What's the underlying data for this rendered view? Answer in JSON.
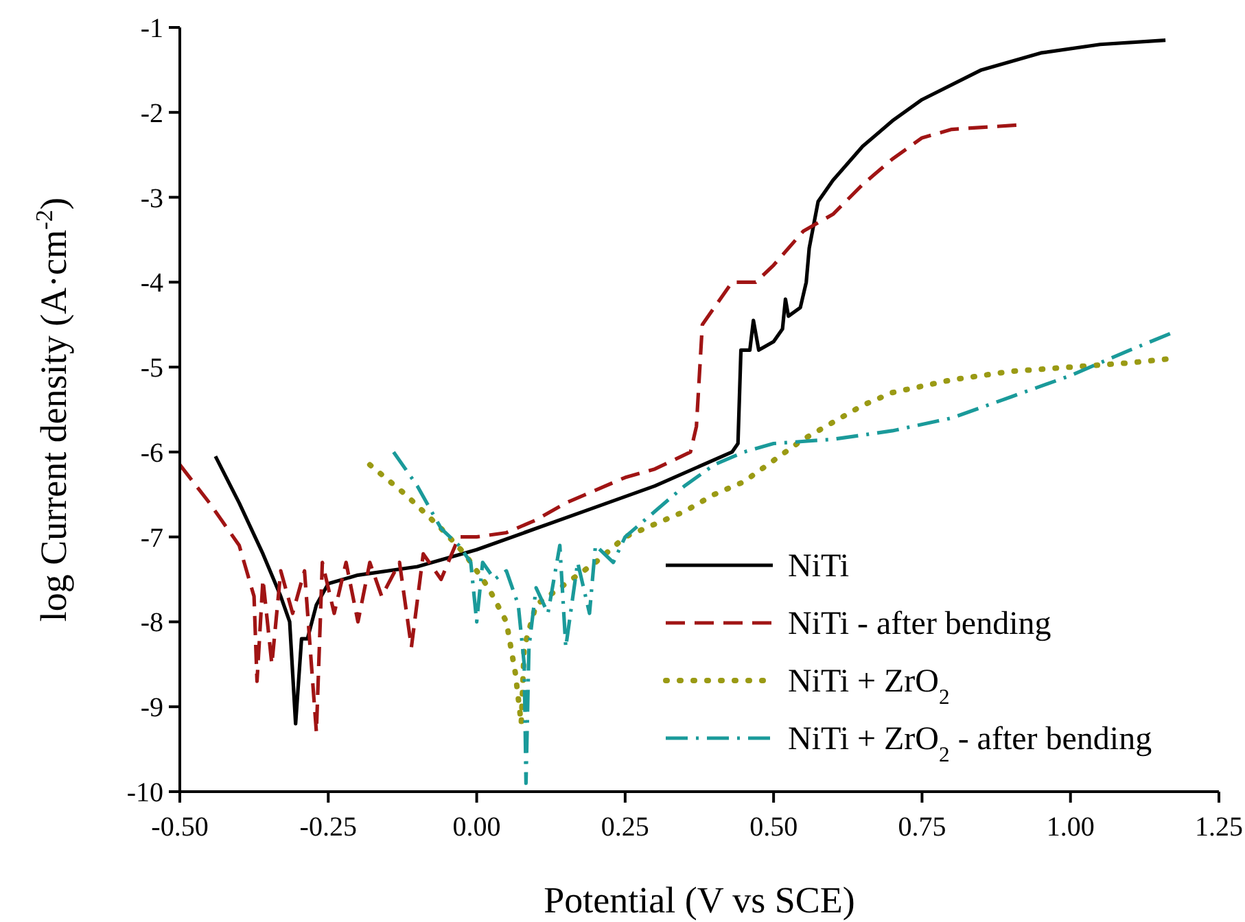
{
  "chart_data": {
    "type": "line",
    "xlabel": "Potential (V vs SCE)",
    "ylabel": "log Current density (A·cm$^{-2}$)",
    "xlim": [
      -0.5,
      1.25
    ],
    "ylim": [
      -10,
      -1
    ],
    "xticks": [
      {
        "value": -0.5,
        "label": "-0.50"
      },
      {
        "value": -0.25,
        "label": "-0.25"
      },
      {
        "value": 0,
        "label": "0.00"
      },
      {
        "value": 0.25,
        "label": "0.25"
      },
      {
        "value": 0.5,
        "label": "0.50"
      },
      {
        "value": 0.75,
        "label": "0.75"
      },
      {
        "value": 1,
        "label": "1.00"
      },
      {
        "value": 1.25,
        "label": "1.25"
      }
    ],
    "yticks": [
      -10,
      -9,
      -8,
      -7,
      -6,
      -5,
      -4,
      -3,
      -2,
      -1
    ],
    "grid": false,
    "legend": "bottom right",
    "marker": "none",
    "series": [
      {
        "name": "NiTi",
        "color": "#000000",
        "line_style": "solid",
        "x": [
          -0.44,
          -0.4,
          -0.36,
          -0.33,
          -0.315,
          -0.305,
          -0.295,
          -0.285,
          -0.27,
          -0.25,
          -0.2,
          -0.1,
          0,
          0.1,
          0.2,
          0.3,
          0.43,
          0.44,
          0.445,
          0.46,
          0.466,
          0.475,
          0.5,
          0.515,
          0.52,
          0.525,
          0.545,
          0.555,
          0.56,
          0.575,
          0.6,
          0.65,
          0.7,
          0.75,
          0.85,
          0.95,
          1.05,
          1.16
        ],
        "values": [
          -6.05,
          -6.6,
          -7.2,
          -7.7,
          -8.0,
          -9.2,
          -8.2,
          -8.2,
          -7.8,
          -7.55,
          -7.45,
          -7.35,
          -7.15,
          -6.9,
          -6.65,
          -6.4,
          -6.0,
          -5.9,
          -4.8,
          -4.8,
          -4.45,
          -4.8,
          -4.7,
          -4.55,
          -4.2,
          -4.4,
          -4.3,
          -4.0,
          -3.6,
          -3.05,
          -2.8,
          -2.4,
          -2.1,
          -1.85,
          -1.5,
          -1.3,
          -1.2,
          -1.15
        ]
      },
      {
        "name": "NiTi - after bending",
        "color": "#a01414",
        "line_style": "dashed",
        "x": [
          -0.5,
          -0.45,
          -0.4,
          -0.375,
          -0.37,
          -0.36,
          -0.345,
          -0.33,
          -0.31,
          -0.29,
          -0.27,
          -0.26,
          -0.24,
          -0.22,
          -0.2,
          -0.18,
          -0.16,
          -0.13,
          -0.11,
          -0.09,
          -0.06,
          -0.03,
          0,
          0.05,
          0.1,
          0.15,
          0.2,
          0.25,
          0.3,
          0.36,
          0.37,
          0.38,
          0.4,
          0.43,
          0.47,
          0.5,
          0.55,
          0.6,
          0.65,
          0.7,
          0.75,
          0.8,
          0.91
        ],
        "values": [
          -6.15,
          -6.6,
          -7.1,
          -7.7,
          -8.7,
          -7.5,
          -8.5,
          -7.4,
          -7.9,
          -7.4,
          -9.3,
          -7.3,
          -7.9,
          -7.3,
          -8.0,
          -7.3,
          -7.7,
          -7.3,
          -8.3,
          -7.2,
          -7.5,
          -7.0,
          -7.0,
          -6.95,
          -6.8,
          -6.6,
          -6.45,
          -6.3,
          -6.2,
          -6.0,
          -5.7,
          -4.5,
          -4.3,
          -4.0,
          -4.0,
          -3.8,
          -3.4,
          -3.2,
          -2.85,
          -2.55,
          -2.3,
          -2.2,
          -2.15
        ]
      },
      {
        "name": "NiTi + ZrO$_{2}$",
        "color": "#9a9a14",
        "line_style": "dotted",
        "x": [
          -0.18,
          -0.12,
          -0.06,
          -0.02,
          0.02,
          0.05,
          0.065,
          0.075,
          0.08,
          0.1,
          0.15,
          0.2,
          0.25,
          0.3,
          0.35,
          0.4,
          0.45,
          0.5,
          0.55,
          0.6,
          0.65,
          0.7,
          0.8,
          0.9,
          1.0,
          1.1,
          1.17
        ],
        "values": [
          -6.15,
          -6.5,
          -6.9,
          -7.2,
          -7.6,
          -8.0,
          -8.6,
          -9.2,
          -8.3,
          -7.8,
          -7.55,
          -7.3,
          -7.0,
          -6.85,
          -6.7,
          -6.5,
          -6.35,
          -6.1,
          -5.85,
          -5.65,
          -5.45,
          -5.3,
          -5.15,
          -5.05,
          -5.0,
          -4.95,
          -4.9
        ]
      },
      {
        "name": "NiTi + ZrO$_{2}$ - after bending",
        "color": "#1a9a9a",
        "line_style": "dashdot",
        "x": [
          -0.14,
          -0.1,
          -0.06,
          -0.03,
          -0.01,
          0,
          0.01,
          0.03,
          0.05,
          0.07,
          0.08,
          0.083,
          0.088,
          0.1,
          0.12,
          0.14,
          0.15,
          0.17,
          0.19,
          0.2,
          0.23,
          0.25,
          0.3,
          0.35,
          0.4,
          0.45,
          0.5,
          0.6,
          0.7,
          0.8,
          0.9,
          1.0,
          1.1,
          1.17
        ],
        "values": [
          -6.0,
          -6.4,
          -6.9,
          -7.1,
          -7.3,
          -8.0,
          -7.3,
          -7.5,
          -7.4,
          -7.8,
          -8.5,
          -9.9,
          -8.3,
          -7.6,
          -7.9,
          -7.1,
          -8.3,
          -7.3,
          -7.9,
          -7.1,
          -7.3,
          -7.0,
          -6.7,
          -6.4,
          -6.15,
          -6.0,
          -5.9,
          -5.85,
          -5.75,
          -5.6,
          -5.35,
          -5.1,
          -4.8,
          -4.6
        ]
      }
    ]
  }
}
